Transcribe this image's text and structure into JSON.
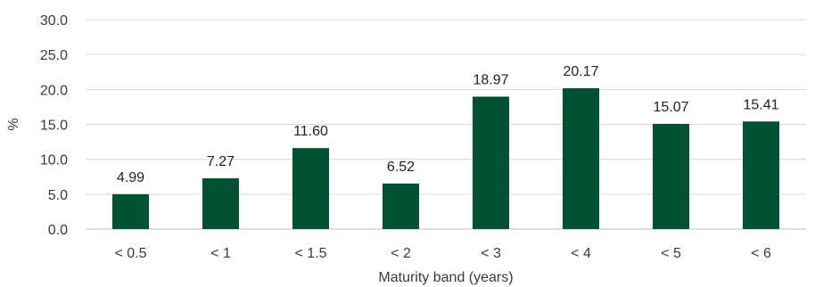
{
  "colors": {
    "bar": "#005232",
    "grid": "#d9d9d9",
    "text": "#3a3a3a"
  },
  "chart_data": {
    "type": "bar",
    "title": "",
    "xlabel": "Maturity band (years)",
    "ylabel": "%",
    "ylim": [
      0,
      30
    ],
    "grid": true,
    "yticks": [
      "0.0",
      "5.0",
      "10.0",
      "15.0",
      "20.0",
      "25.0",
      "30.0"
    ],
    "categories": [
      "< 0.5",
      "< 1",
      "< 1.5",
      "< 2",
      "< 3",
      "< 4",
      "< 5",
      "< 6"
    ],
    "values": [
      4.99,
      7.27,
      11.6,
      6.52,
      18.97,
      20.17,
      15.07,
      15.41
    ],
    "data_labels": [
      "4.99",
      "7.27",
      "11.60",
      "6.52",
      "18.97",
      "20.17",
      "15.07",
      "15.41"
    ]
  }
}
